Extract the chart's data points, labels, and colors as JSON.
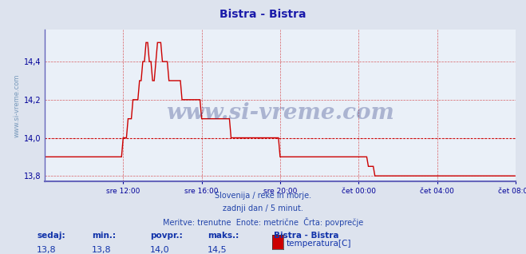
{
  "title": "Bistra - Bistra",
  "title_color": "#1a1aaa",
  "bg_color": "#dde3ee",
  "plot_bg_color": "#eaf0f8",
  "grid_color": "#cc0000",
  "axis_color": "#000099",
  "line_color": "#cc0000",
  "avg_value": 14.0,
  "ylabel_text": "www.si-vreme.com",
  "ylabel_color": "#7799bb",
  "xticklabels": [
    "sre 12:00",
    "sre 16:00",
    "sre 20:00",
    "čet 00:00",
    "čet 04:00",
    "čet 08:00"
  ],
  "xtick_positions": [
    4,
    8,
    12,
    16,
    20,
    24
  ],
  "yticklabels": [
    "13,8",
    "14,0",
    "14,2",
    "14,4"
  ],
  "ytick_values": [
    13.8,
    14.0,
    14.2,
    14.4
  ],
  "ylim": [
    13.77,
    14.57
  ],
  "xlim": [
    0,
    24
  ],
  "footer_line1": "Slovenija / reke in morje.",
  "footer_line2": "zadnji dan / 5 minut.",
  "footer_line3": "Meritve: trenutne  Enote: metrične  Črta: povprečje",
  "footer_color": "#2244aa",
  "legend_title": "Bistra - Bistra",
  "legend_label": "temperatura[C]",
  "legend_box_color": "#cc0000",
  "stats_labels": [
    "sedaj:",
    "min.:",
    "povpr.:",
    "maks.:"
  ],
  "stats_values": [
    "13,8",
    "13,8",
    "14,0",
    "14,5"
  ],
  "stats_color": "#1133aa",
  "watermark": "www.si-vreme.com",
  "watermark_color": "#1a2a7a",
  "spine_bottom_color": "#6666bb",
  "spine_left_color": "#6666bb"
}
